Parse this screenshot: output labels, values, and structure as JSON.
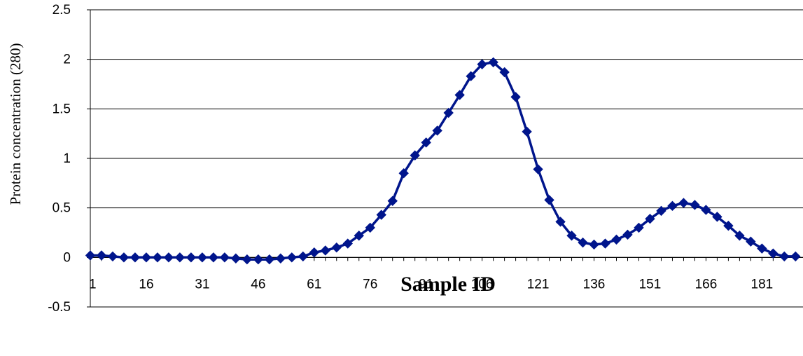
{
  "chart_data": {
    "type": "line",
    "xlabel": "Sample ID",
    "ylabel": "Protein concentration (280)",
    "ylim": [
      -0.5,
      2.5
    ],
    "yticks": [
      "-0.5",
      "0",
      "0.5",
      "1",
      "1.5",
      "2",
      "2.5"
    ],
    "xticks": [
      "1",
      "16",
      "31",
      "46",
      "61",
      "76",
      "91",
      "106",
      "121",
      "136",
      "151",
      "166",
      "181"
    ],
    "grid": "horizontal",
    "legend": "none",
    "series": [
      {
        "color": "#00158C",
        "marker": "diamond",
        "x": [
          1,
          4,
          7,
          10,
          13,
          16,
          19,
          22,
          25,
          28,
          31,
          34,
          37,
          40,
          43,
          46,
          49,
          52,
          55,
          58,
          61,
          64,
          67,
          70,
          73,
          76,
          79,
          82,
          85,
          88,
          91,
          94,
          97,
          100,
          103,
          106,
          109,
          112,
          115,
          118,
          121,
          124,
          127,
          130,
          133,
          136,
          139,
          142,
          145,
          148,
          151,
          154,
          157,
          160,
          163,
          166,
          169,
          172,
          175,
          178,
          181,
          184,
          187,
          190
        ],
        "y": [
          0.02,
          0.02,
          0.01,
          0.0,
          0.0,
          0.0,
          0.0,
          0.0,
          0.0,
          0.0,
          0.0,
          0.0,
          0.0,
          -0.01,
          -0.02,
          -0.02,
          -0.02,
          -0.01,
          0.0,
          0.01,
          0.05,
          0.07,
          0.1,
          0.14,
          0.22,
          0.3,
          0.43,
          0.57,
          0.85,
          1.03,
          1.16,
          1.28,
          1.46,
          1.64,
          1.83,
          1.95,
          1.97,
          1.87,
          1.62,
          1.27,
          0.89,
          0.58,
          0.36,
          0.22,
          0.15,
          0.13,
          0.14,
          0.18,
          0.23,
          0.3,
          0.39,
          0.47,
          0.52,
          0.55,
          0.53,
          0.48,
          0.41,
          0.32,
          0.22,
          0.16,
          0.09,
          0.04,
          0.01,
          0.01
        ]
      }
    ]
  }
}
